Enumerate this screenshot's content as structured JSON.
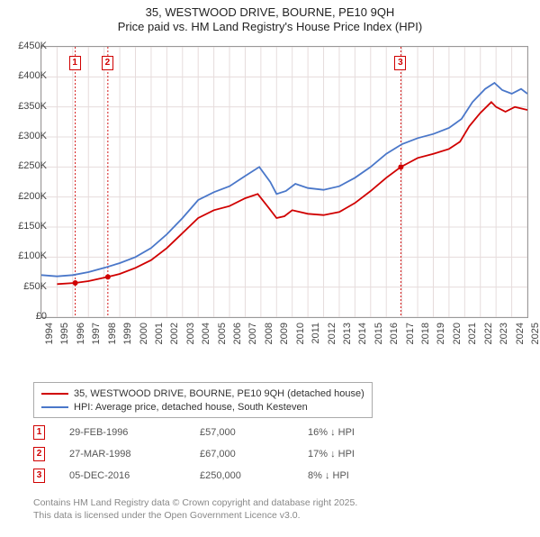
{
  "title": {
    "line1": "35, WESTWOOD DRIVE, BOURNE, PE10 9QH",
    "line2": "Price paid vs. HM Land Registry's House Price Index (HPI)"
  },
  "chart": {
    "type": "line",
    "background": "#ffffff",
    "grid_color": "#e6dcdc",
    "border_color": "#999999",
    "x": {
      "min": 1994,
      "max": 2025,
      "ticks": [
        1994,
        1995,
        1996,
        1997,
        1998,
        1999,
        2000,
        2001,
        2002,
        2003,
        2004,
        2005,
        2006,
        2007,
        2008,
        2009,
        2010,
        2011,
        2012,
        2013,
        2014,
        2015,
        2016,
        2017,
        2018,
        2019,
        2020,
        2021,
        2022,
        2023,
        2024,
        2025
      ]
    },
    "y": {
      "min": 0,
      "max": 450000,
      "tick_step": 50000,
      "tick_labels": [
        "£0",
        "£50K",
        "£100K",
        "£150K",
        "£200K",
        "£250K",
        "£300K",
        "£350K",
        "£400K",
        "£450K"
      ]
    },
    "series": [
      {
        "name": "35, WESTWOOD DRIVE, BOURNE, PE10 9QH (detached house)",
        "color": "#d00000",
        "points": [
          [
            1995.0,
            55000
          ],
          [
            1996.16,
            57000
          ],
          [
            1997.0,
            60000
          ],
          [
            1998.24,
            67000
          ],
          [
            1999.0,
            72000
          ],
          [
            2000.0,
            82000
          ],
          [
            2001.0,
            95000
          ],
          [
            2002.0,
            115000
          ],
          [
            2003.0,
            140000
          ],
          [
            2004.0,
            165000
          ],
          [
            2005.0,
            178000
          ],
          [
            2006.0,
            185000
          ],
          [
            2007.0,
            198000
          ],
          [
            2007.8,
            205000
          ],
          [
            2008.5,
            182000
          ],
          [
            2009.0,
            165000
          ],
          [
            2009.5,
            168000
          ],
          [
            2010.0,
            178000
          ],
          [
            2011.0,
            172000
          ],
          [
            2012.0,
            170000
          ],
          [
            2013.0,
            175000
          ],
          [
            2014.0,
            190000
          ],
          [
            2015.0,
            210000
          ],
          [
            2016.0,
            232000
          ],
          [
            2016.93,
            250000
          ],
          [
            2017.5,
            258000
          ],
          [
            2018.0,
            265000
          ],
          [
            2019.0,
            272000
          ],
          [
            2020.0,
            280000
          ],
          [
            2020.7,
            292000
          ],
          [
            2021.3,
            318000
          ],
          [
            2022.0,
            340000
          ],
          [
            2022.7,
            358000
          ],
          [
            2023.0,
            350000
          ],
          [
            2023.6,
            342000
          ],
          [
            2024.2,
            350000
          ],
          [
            2025.0,
            345000
          ]
        ]
      },
      {
        "name": "HPI: Average price, detached house, South Kesteven",
        "color": "#4a77c9",
        "points": [
          [
            1994.0,
            70000
          ],
          [
            1995.0,
            68000
          ],
          [
            1996.0,
            70000
          ],
          [
            1997.0,
            75000
          ],
          [
            1998.0,
            82000
          ],
          [
            1999.0,
            90000
          ],
          [
            2000.0,
            100000
          ],
          [
            2001.0,
            115000
          ],
          [
            2002.0,
            138000
          ],
          [
            2003.0,
            165000
          ],
          [
            2004.0,
            195000
          ],
          [
            2005.0,
            208000
          ],
          [
            2006.0,
            218000
          ],
          [
            2007.0,
            235000
          ],
          [
            2007.9,
            250000
          ],
          [
            2008.6,
            225000
          ],
          [
            2009.0,
            205000
          ],
          [
            2009.6,
            210000
          ],
          [
            2010.2,
            222000
          ],
          [
            2011.0,
            215000
          ],
          [
            2012.0,
            212000
          ],
          [
            2013.0,
            218000
          ],
          [
            2014.0,
            232000
          ],
          [
            2015.0,
            250000
          ],
          [
            2016.0,
            272000
          ],
          [
            2017.0,
            288000
          ],
          [
            2018.0,
            298000
          ],
          [
            2019.0,
            305000
          ],
          [
            2020.0,
            315000
          ],
          [
            2020.8,
            330000
          ],
          [
            2021.5,
            358000
          ],
          [
            2022.3,
            380000
          ],
          [
            2022.9,
            390000
          ],
          [
            2023.4,
            378000
          ],
          [
            2024.0,
            372000
          ],
          [
            2024.6,
            380000
          ],
          [
            2025.0,
            372000
          ]
        ]
      }
    ],
    "sale_markers": [
      {
        "n": "1",
        "year": 1996.16,
        "price": 57000,
        "color": "#d00000"
      },
      {
        "n": "2",
        "year": 1998.24,
        "price": 67000,
        "color": "#d00000"
      },
      {
        "n": "3",
        "year": 2016.93,
        "price": 250000,
        "color": "#d00000"
      }
    ]
  },
  "legend": {
    "items": [
      {
        "label": "35, WESTWOOD DRIVE, BOURNE, PE10 9QH (detached house)",
        "color": "#d00000"
      },
      {
        "label": "HPI: Average price, detached house, South Kesteven",
        "color": "#4a77c9"
      }
    ]
  },
  "sales": [
    {
      "n": "1",
      "date": "29-FEB-1996",
      "price": "£57,000",
      "diff": "16% ↓ HPI",
      "color": "#d00000"
    },
    {
      "n": "2",
      "date": "27-MAR-1998",
      "price": "£67,000",
      "diff": "17% ↓ HPI",
      "color": "#d00000"
    },
    {
      "n": "3",
      "date": "05-DEC-2016",
      "price": "£250,000",
      "diff": "8% ↓ HPI",
      "color": "#d00000"
    }
  ],
  "attribution": {
    "line1": "Contains HM Land Registry data © Crown copyright and database right 2025.",
    "line2": "This data is licensed under the Open Government Licence v3.0."
  }
}
